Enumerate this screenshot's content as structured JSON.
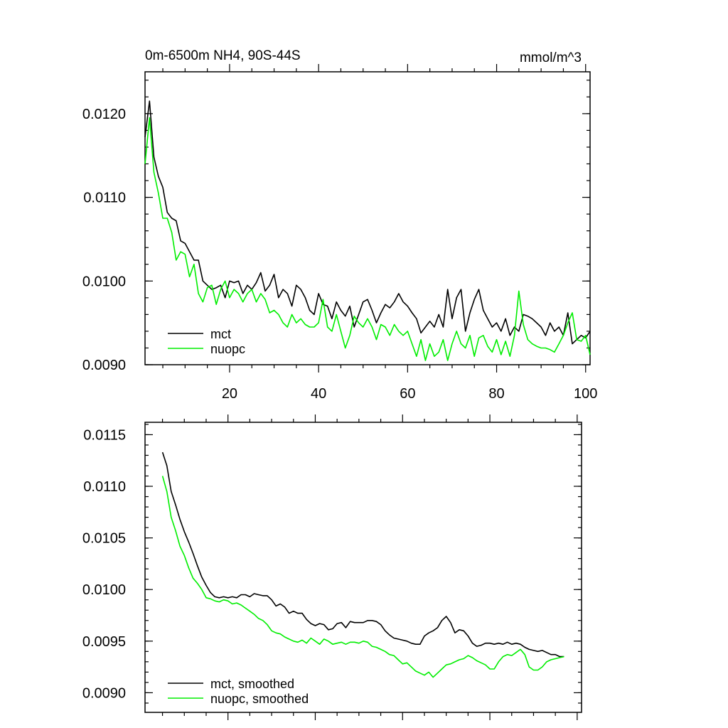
{
  "header": {
    "left_title": "0m-6500m NH4, 90S-44S",
    "right_title": "mmol/m^3"
  },
  "colors": {
    "mct": "#000000",
    "nuopc": "#00ee00"
  },
  "chart_data": [
    {
      "type": "line",
      "name": "raw",
      "xlim": [
        1,
        101
      ],
      "ylim": [
        0.009,
        0.0125
      ],
      "x_ticks": [
        20,
        40,
        60,
        80,
        100
      ],
      "x_tick_labels": [
        "20",
        "40",
        "60",
        "80",
        "100"
      ],
      "y_ticks": [
        0.009,
        0.01,
        0.011,
        0.012
      ],
      "y_tick_labels": [
        "0.0090",
        "0.0100",
        "0.0110",
        "0.0120"
      ],
      "grid": false,
      "legend_position": "bottom-left",
      "legend": [
        "mct",
        "nuopc"
      ],
      "x": [
        1,
        2,
        3,
        4,
        5,
        6,
        7,
        8,
        9,
        10,
        11,
        12,
        13,
        14,
        15,
        16,
        17,
        18,
        19,
        20,
        21,
        22,
        23,
        24,
        25,
        26,
        27,
        28,
        29,
        30,
        31,
        32,
        33,
        34,
        35,
        36,
        37,
        38,
        39,
        40,
        41,
        42,
        43,
        44,
        45,
        46,
        47,
        48,
        49,
        50,
        51,
        52,
        53,
        54,
        55,
        56,
        57,
        58,
        59,
        60,
        61,
        62,
        63,
        64,
        65,
        66,
        67,
        68,
        69,
        70,
        71,
        72,
        73,
        74,
        75,
        76,
        77,
        78,
        79,
        80,
        81,
        82,
        83,
        84,
        85,
        86,
        87,
        88,
        89,
        90,
        91,
        92,
        93,
        94,
        95,
        96,
        97,
        98,
        99,
        100,
        101
      ],
      "series": [
        {
          "name": "mct",
          "color": "#000000",
          "values": [
            0.01172,
            0.01215,
            0.01148,
            0.01125,
            0.01112,
            0.01082,
            0.01075,
            0.01072,
            0.01048,
            0.01045,
            0.01035,
            0.01025,
            0.01025,
            0.01,
            0.00995,
            0.0099,
            0.00992,
            0.00995,
            0.0098,
            0.01,
            0.00998,
            0.01,
            0.00985,
            0.00995,
            0.0099,
            0.00998,
            0.0101,
            0.00988,
            0.00995,
            0.01008,
            0.0098,
            0.0099,
            0.00985,
            0.0097,
            0.00995,
            0.0099,
            0.0098,
            0.00965,
            0.0096,
            0.00985,
            0.00972,
            0.0097,
            0.00955,
            0.00975,
            0.00965,
            0.00958,
            0.0097,
            0.00945,
            0.0096,
            0.00975,
            0.00978,
            0.00965,
            0.0095,
            0.00962,
            0.00972,
            0.00968,
            0.00975,
            0.00985,
            0.00975,
            0.0097,
            0.00962,
            0.00955,
            0.00938,
            0.00945,
            0.00952,
            0.00945,
            0.0096,
            0.00945,
            0.0099,
            0.00955,
            0.0098,
            0.0099,
            0.0094,
            0.00962,
            0.00978,
            0.0099,
            0.00965,
            0.00955,
            0.00945,
            0.0095,
            0.0094,
            0.00955,
            0.00935,
            0.00945,
            0.0094,
            0.0096,
            0.00958,
            0.00955,
            0.0095,
            0.00945,
            0.00935,
            0.0095,
            0.0094,
            0.00945,
            0.00935,
            0.00962,
            0.00925,
            0.0093,
            0.00935,
            0.00932,
            0.0094
          ]
        },
        {
          "name": "nuopc",
          "color": "#00ee00",
          "values": [
            0.0114,
            0.01195,
            0.0113,
            0.01105,
            0.01075,
            0.01075,
            0.01058,
            0.01025,
            0.01035,
            0.01032,
            0.01005,
            0.0102,
            0.00985,
            0.00975,
            0.00992,
            0.00995,
            0.00972,
            0.0099,
            0.01,
            0.0098,
            0.0099,
            0.00985,
            0.00975,
            0.00985,
            0.0099,
            0.00975,
            0.00985,
            0.00978,
            0.00962,
            0.00965,
            0.0096,
            0.0095,
            0.00945,
            0.0096,
            0.0095,
            0.00955,
            0.00948,
            0.00945,
            0.00945,
            0.0095,
            0.00978,
            0.00945,
            0.0094,
            0.0096,
            0.0094,
            0.0092,
            0.00935,
            0.00958,
            0.0095,
            0.00945,
            0.00955,
            0.00945,
            0.0093,
            0.00948,
            0.00945,
            0.00935,
            0.00948,
            0.0094,
            0.00935,
            0.0094,
            0.00925,
            0.0091,
            0.0093,
            0.00905,
            0.00925,
            0.0091,
            0.00915,
            0.0093,
            0.00905,
            0.00925,
            0.0094,
            0.00925,
            0.0092,
            0.00935,
            0.0091,
            0.00932,
            0.00935,
            0.00922,
            0.00915,
            0.0093,
            0.00912,
            0.00928,
            0.0091,
            0.00935,
            0.00988,
            0.00948,
            0.0093,
            0.00925,
            0.00922,
            0.0092,
            0.0092,
            0.00918,
            0.00915,
            0.00925,
            0.00935,
            0.0095,
            0.00962,
            0.0093,
            0.00928,
            0.00935,
            0.00912
          ]
        }
      ]
    },
    {
      "type": "line",
      "name": "smoothed",
      "xlim": [
        1,
        101
      ],
      "ylim": [
        0.00881,
        0.01162
      ],
      "x_ticks": [
        20,
        40,
        60,
        80,
        100
      ],
      "x_tick_labels": [],
      "y_ticks": [
        0.009,
        0.0095,
        0.01,
        0.0105,
        0.011,
        0.0115
      ],
      "y_tick_labels": [
        "0.0090",
        "0.0095",
        "0.0100",
        "0.0105",
        "0.0110",
        "0.0115"
      ],
      "grid": false,
      "legend_position": "bottom-left",
      "legend": [
        "mct, smoothed",
        "nuopc, smoothed"
      ],
      "x": [
        5,
        6,
        7,
        8,
        9,
        10,
        11,
        12,
        13,
        14,
        15,
        16,
        17,
        18,
        19,
        20,
        21,
        22,
        23,
        24,
        25,
        26,
        27,
        28,
        29,
        30,
        31,
        32,
        33,
        34,
        35,
        36,
        37,
        38,
        39,
        40,
        41,
        42,
        43,
        44,
        45,
        46,
        47,
        48,
        49,
        50,
        51,
        52,
        53,
        54,
        55,
        56,
        57,
        58,
        59,
        60,
        61,
        62,
        63,
        64,
        65,
        66,
        67,
        68,
        69,
        70,
        71,
        72,
        73,
        74,
        75,
        76,
        77,
        78,
        79,
        80,
        81,
        82,
        83,
        84,
        85,
        86,
        87,
        88,
        89,
        90,
        91,
        92,
        93,
        94,
        95,
        96,
        97
      ],
      "series": [
        {
          "name": "mct, smoothed",
          "color": "#000000",
          "values": [
            0.01133,
            0.0112,
            0.01095,
            0.01082,
            0.01068,
            0.01056,
            0.01046,
            0.01035,
            0.01023,
            0.01012,
            0.01004,
            0.00997,
            0.00993,
            0.00992,
            0.00993,
            0.00992,
            0.00993,
            0.00992,
            0.00995,
            0.00995,
            0.00993,
            0.00996,
            0.00995,
            0.00994,
            0.00994,
            0.0099,
            0.00984,
            0.00986,
            0.00983,
            0.00977,
            0.00979,
            0.00977,
            0.00977,
            0.00971,
            0.00967,
            0.00965,
            0.00967,
            0.00966,
            0.00961,
            0.00962,
            0.00967,
            0.00968,
            0.00963,
            0.00969,
            0.00968,
            0.00968,
            0.00968,
            0.0097,
            0.0097,
            0.00969,
            0.00966,
            0.0096,
            0.00956,
            0.00953,
            0.00952,
            0.00951,
            0.0095,
            0.00948,
            0.00947,
            0.00947,
            0.00955,
            0.00958,
            0.0096,
            0.00963,
            0.0097,
            0.00974,
            0.00968,
            0.00958,
            0.00961,
            0.0096,
            0.00955,
            0.00948,
            0.00945,
            0.00946,
            0.00948,
            0.00948,
            0.00947,
            0.00948,
            0.00947,
            0.00949,
            0.00947,
            0.00948,
            0.00947,
            0.00944,
            0.00942,
            0.00941,
            0.0094,
            0.00941,
            0.00939,
            0.00937,
            0.00937,
            0.00935,
            0.00935
          ]
        },
        {
          "name": "nuopc, smoothed",
          "color": "#00ee00",
          "values": [
            0.0111,
            0.01095,
            0.0107,
            0.01057,
            0.01042,
            0.01033,
            0.01021,
            0.01011,
            0.01006,
            0.01,
            0.00992,
            0.00991,
            0.00989,
            0.00988,
            0.0099,
            0.00989,
            0.00986,
            0.00987,
            0.00985,
            0.00982,
            0.00979,
            0.00976,
            0.00972,
            0.0097,
            0.00966,
            0.0096,
            0.00958,
            0.00957,
            0.00954,
            0.00952,
            0.0095,
            0.00949,
            0.00951,
            0.00948,
            0.00953,
            0.0095,
            0.00947,
            0.00952,
            0.0095,
            0.00947,
            0.00948,
            0.00949,
            0.00947,
            0.00949,
            0.00949,
            0.00948,
            0.0095,
            0.00949,
            0.00945,
            0.00944,
            0.00942,
            0.0094,
            0.00937,
            0.00936,
            0.00932,
            0.00928,
            0.00929,
            0.00925,
            0.00921,
            0.00919,
            0.00917,
            0.0092,
            0.00915,
            0.00919,
            0.00923,
            0.00927,
            0.00928,
            0.0093,
            0.00932,
            0.00933,
            0.00936,
            0.00934,
            0.00931,
            0.00929,
            0.00927,
            0.00923,
            0.00923,
            0.0093,
            0.00935,
            0.00937,
            0.00936,
            0.00939,
            0.00942,
            0.00937,
            0.00925,
            0.00922,
            0.00922,
            0.00925,
            0.0093,
            0.00932,
            0.00933,
            0.00934,
            0.00935
          ]
        }
      ]
    }
  ]
}
